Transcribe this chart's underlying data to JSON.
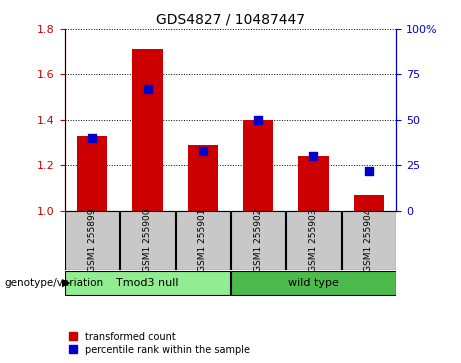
{
  "title": "GDS4827 / 10487447",
  "samples": [
    "GSM1255899",
    "GSM1255900",
    "GSM1255901",
    "GSM1255902",
    "GSM1255903",
    "GSM1255904"
  ],
  "sample_display": [
    "GSM1 255899",
    "GSM1 255900",
    "GSM1 255901",
    "GSM1 255902",
    "GSM1 255903",
    "GSM1 255904"
  ],
  "red_values": [
    1.33,
    1.71,
    1.29,
    1.4,
    1.24,
    1.07
  ],
  "blue_percentiles": [
    40,
    67,
    33,
    50,
    30,
    22
  ],
  "ylim_left": [
    1.0,
    1.8
  ],
  "ylim_right": [
    0,
    100
  ],
  "yticks_left": [
    1.0,
    1.2,
    1.4,
    1.6,
    1.8
  ],
  "yticks_right": [
    0,
    25,
    50,
    75,
    100
  ],
  "group_labels": [
    "Tmod3 null",
    "wild type"
  ],
  "group_color_1": "#90EE90",
  "group_color_2": "#4CBB4C",
  "bar_color": "#CC0000",
  "dot_color": "#0000CC",
  "tick_color_left": "#CC0000",
  "tick_color_right": "#0000CC",
  "annotation_label": "genotype/variation",
  "legend_red": "transformed count",
  "legend_blue": "percentile rank within the sample",
  "baseline": 1.0,
  "bar_width": 0.55,
  "dot_size": 40,
  "cell_color": "#C8C8C8",
  "title_fontsize": 10
}
